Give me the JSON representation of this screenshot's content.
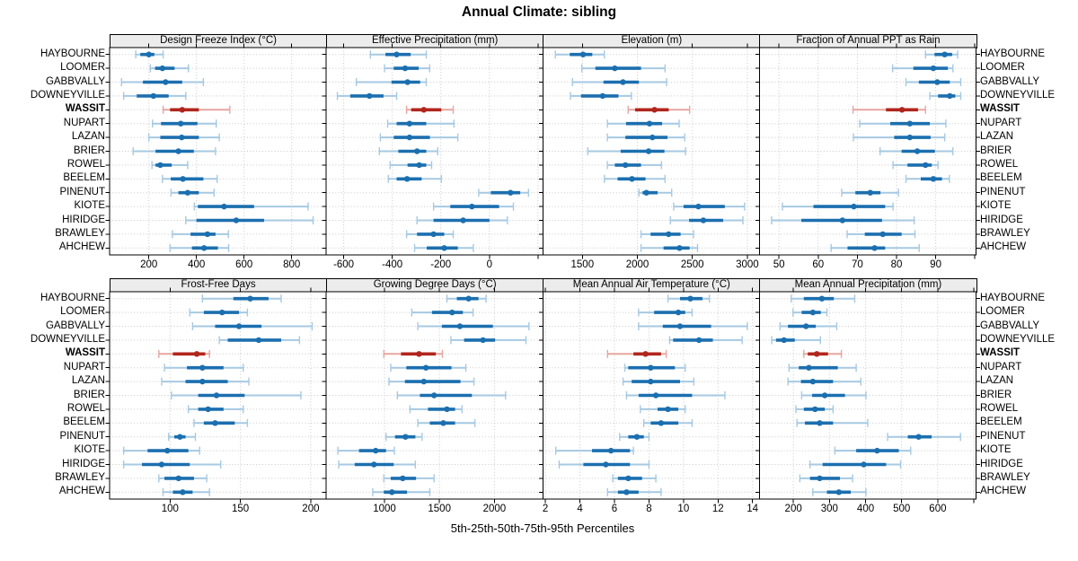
{
  "title": "Annual Climate: sibling",
  "axis_title": "5th-25th-50th-75th-95th Percentiles",
  "highlight_category": "WASSIT",
  "colors": {
    "blue_dark": "#1b6faf",
    "blue_light": "#a6c9e2",
    "red_dark": "#b0261d",
    "red_light": "#e6a69f",
    "grid": "#c8c8c8",
    "strip_bg": "#ececec",
    "border": "#000000"
  },
  "chart_data": {
    "type": "dot-interval",
    "percentiles": [
      5,
      25,
      50,
      75,
      95
    ],
    "legend_position": "none",
    "grid": true,
    "categories": [
      "HAYBOURNE",
      "LOOMER",
      "GABBVALLY",
      "DOWNEYVILLE",
      "WASSIT",
      "NUPART",
      "LAZAN",
      "BRIER",
      "ROWEL",
      "BEELEM",
      "PINENUT",
      "KIOTE",
      "HIRIDGE",
      "BRAWLEY",
      "AHCHEW"
    ],
    "panels": [
      {
        "title": "Design Freeze Index (°C)",
        "row": 0,
        "col": 0,
        "xlim": [
          35,
          945
        ],
        "ticks": [
          200,
          400,
          600,
          800
        ],
        "minor_ticks": [],
        "values": {
          "HAYBOURNE": [
            145,
            164,
            200,
            223,
            260
          ],
          "LOOMER": [
            206,
            226,
            257,
            308,
            366
          ],
          "GABBVALLY": [
            85,
            175,
            270,
            340,
            429
          ],
          "DOWNEYVILLE": [
            94,
            149,
            219,
            283,
            355
          ],
          "WASSIT": [
            260,
            289,
            340,
            410,
            540
          ],
          "NUPART": [
            215,
            251,
            334,
            404,
            483
          ],
          "LAZAN": [
            200,
            248,
            338,
            410,
            496
          ],
          "BRIER": [
            134,
            228,
            324,
            389,
            480
          ],
          "ROWEL": [
            213,
            228,
            248,
            296,
            363
          ],
          "BEELEM": [
            257,
            292,
            343,
            429,
            487
          ],
          "PINENUT": [
            293,
            324,
            363,
            410,
            474
          ],
          "KIOTE": [
            391,
            406,
            516,
            642,
            869
          ],
          "HIRIDGE": [
            355,
            400,
            567,
            684,
            890
          ],
          "BRAWLEY": [
            299,
            375,
            446,
            480,
            534
          ],
          "AHCHEW": [
            289,
            381,
            432,
            490,
            535
          ]
        }
      },
      {
        "title": "Effective Precipitation (mm)",
        "row": 0,
        "col": 1,
        "xlim": [
          -672,
          220
        ],
        "ticks": [
          -600,
          -400,
          -200,
          0
        ],
        "minor_ticks": [
          200
        ],
        "values": {
          "HAYBOURNE": [
            -490,
            -428,
            -382,
            -324,
            -260
          ],
          "LOOMER": [
            -432,
            -394,
            -347,
            -291,
            -246
          ],
          "GABBVALLY": [
            -548,
            -403,
            -337,
            -285,
            -260
          ],
          "DOWNEYVILLE": [
            -626,
            -573,
            -494,
            -436,
            -382
          ],
          "WASSIT": [
            -341,
            -322,
            -270,
            -198,
            -149
          ],
          "NUPART": [
            -419,
            -382,
            -329,
            -260,
            -146
          ],
          "LAZAN": [
            -449,
            -394,
            -329,
            -245,
            -130
          ],
          "BRIER": [
            -453,
            -375,
            -298,
            -260,
            -213
          ],
          "ROWEL": [
            -409,
            -337,
            -289,
            -260,
            -238
          ],
          "BEELEM": [
            -416,
            -382,
            -339,
            -279,
            -198
          ],
          "PINENUT": [
            -44,
            6,
            87,
            127,
            161
          ],
          "KIOTE": [
            -230,
            -161,
            -72,
            40,
            99
          ],
          "HIRIDGE": [
            -298,
            -230,
            -108,
            0,
            74
          ],
          "BRAWLEY": [
            -341,
            -298,
            -230,
            -186,
            -149
          ],
          "AHCHEW": [
            -308,
            -258,
            -186,
            -130,
            -66
          ]
        }
      },
      {
        "title": "Elevation (m)",
        "row": 0,
        "col": 2,
        "xlim": [
          1140,
          3110
        ],
        "ticks": [
          1500,
          2000,
          2500,
          3000
        ],
        "minor_ticks": [],
        "values": {
          "HAYBOURNE": [
            1254,
            1385,
            1506,
            1590,
            1700
          ],
          "LOOMER": [
            1495,
            1618,
            1795,
            2033,
            2252
          ],
          "GABBVALLY": [
            1410,
            1692,
            1869,
            2014,
            2266
          ],
          "DOWNEYVILLE": [
            1391,
            1487,
            1684,
            1828,
            1946
          ],
          "WASSIT": [
            1916,
            1979,
            2156,
            2285,
            2475
          ],
          "NUPART": [
            1727,
            1897,
            2110,
            2225,
            2380
          ],
          "LAZAN": [
            1727,
            1891,
            2137,
            2274,
            2430
          ],
          "BRIER": [
            1549,
            1848,
            2102,
            2246,
            2438
          ],
          "ROWEL": [
            1727,
            1795,
            1891,
            2033,
            2219
          ],
          "BEELEM": [
            1700,
            1820,
            1951,
            2074,
            2252
          ],
          "PINENUT": [
            2014,
            2047,
            2082,
            2184,
            2312
          ],
          "KIOTE": [
            2330,
            2420,
            2555,
            2795,
            2975
          ],
          "HIRIDGE": [
            2300,
            2470,
            2600,
            2780,
            2960
          ],
          "BRAWLEY": [
            2033,
            2120,
            2284,
            2393,
            2511
          ],
          "AHCHEW": [
            2033,
            2238,
            2383,
            2475,
            2547
          ]
        }
      },
      {
        "title": "Fraction of Annual PPT as Rain",
        "row": 0,
        "col": 3,
        "xlim": [
          45,
          100.3
        ],
        "ticks": [
          50,
          60,
          70,
          80,
          90
        ],
        "minor_ticks": [
          100
        ],
        "values": {
          "HAYBOURNE": [
            87.4,
            89.7,
            92.3,
            94.2,
            95.6
          ],
          "LOOMER": [
            79.0,
            84.3,
            89.4,
            93.1,
            94.4
          ],
          "GABBVALLY": [
            82.4,
            85.7,
            90.4,
            93.6,
            96.4
          ],
          "DOWNEYVILLE": [
            88.5,
            90.6,
            93.6,
            95.0,
            96.4
          ],
          "WASSIT": [
            68.9,
            77.3,
            81.4,
            85.5,
            87.4
          ],
          "NUPART": [
            70.6,
            78.4,
            83.4,
            88.5,
            92.6
          ],
          "LAZAN": [
            69.0,
            79.4,
            83.4,
            88.7,
            92.3
          ],
          "BRIER": [
            75.8,
            81.3,
            85.3,
            89.8,
            94.4
          ],
          "ROWEL": [
            79.1,
            82.8,
            87.4,
            89.0,
            90.6
          ],
          "BEELEM": [
            82.4,
            86.2,
            89.4,
            91.6,
            93.5
          ],
          "PINENUT": [
            66.0,
            69.5,
            73.3,
            75.9,
            80.5
          ],
          "KIOTE": [
            50.9,
            58.8,
            69.1,
            77.1,
            79.1
          ],
          "HIRIDGE": [
            48.1,
            55.7,
            66.2,
            76.3,
            84.5
          ],
          "BRAWLEY": [
            67.4,
            71.9,
            76.5,
            81.3,
            84.7
          ],
          "AHCHEW": [
            63.3,
            67.5,
            74.4,
            77.1,
            85.8
          ]
        }
      },
      {
        "title": "Frost-Free Days",
        "row": 1,
        "col": 0,
        "xlim": [
          57,
          211
        ],
        "ticks": [
          100,
          150,
          200
        ],
        "minor_ticks": [],
        "values": {
          "HAYBOURNE": [
            123,
            145,
            157,
            170,
            179
          ],
          "LOOMER": [
            114,
            124,
            137,
            149,
            155
          ],
          "GABBVALLY": [
            116,
            132,
            149,
            165,
            201
          ],
          "DOWNEYVILLE": [
            135,
            141,
            163,
            179,
            192
          ],
          "WASSIT": [
            92,
            102,
            119,
            125,
            128
          ],
          "NUPART": [
            96,
            112,
            123,
            138,
            152
          ],
          "LAZAN": [
            94,
            111,
            123,
            141,
            156
          ],
          "BRIER": [
            101,
            120,
            133,
            153,
            193
          ],
          "ROWEL": [
            113,
            120,
            127,
            138,
            152
          ],
          "BEELEM": [
            117,
            124,
            132,
            146,
            155
          ],
          "PINENUT": [
            99,
            103,
            107,
            111,
            118
          ],
          "KIOTE": [
            67,
            84,
            98,
            113,
            121
          ],
          "HIRIDGE": [
            67,
            80,
            94,
            114,
            136
          ],
          "BRAWLEY": [
            92,
            96,
            106,
            117,
            126
          ],
          "AHCHEW": [
            95,
            102,
            109,
            116,
            128
          ]
        }
      },
      {
        "title": "Growing Degree Days (°C)",
        "row": 1,
        "col": 1,
        "xlim": [
          470,
          2440
        ],
        "ticks": [
          1000,
          1500,
          2000
        ],
        "minor_ticks": [],
        "values": {
          "HAYBOURNE": [
            1568,
            1658,
            1765,
            1855,
            1924
          ],
          "LOOMER": [
            1248,
            1432,
            1615,
            1713,
            1806
          ],
          "GABBVALLY": [
            1303,
            1522,
            1686,
            1986,
            2314
          ],
          "DOWNEYVILLE": [
            1604,
            1724,
            1896,
            2006,
            2287
          ],
          "WASSIT": [
            994,
            1150,
            1314,
            1467,
            1527
          ],
          "NUPART": [
            1057,
            1199,
            1377,
            1609,
            1740
          ],
          "LAZAN": [
            1041,
            1186,
            1358,
            1691,
            1814
          ],
          "BRIER": [
            1117,
            1322,
            1451,
            1795,
            2101
          ],
          "ROWEL": [
            1232,
            1396,
            1568,
            1642,
            1705
          ],
          "BEELEM": [
            1303,
            1412,
            1535,
            1642,
            1822
          ],
          "PINENUT": [
            1014,
            1096,
            1191,
            1281,
            1342
          ],
          "KIOTE": [
            576,
            768,
            920,
            1014,
            1090
          ],
          "HIRIDGE": [
            584,
            729,
            904,
            1084,
            1281
          ],
          "BRAWLEY": [
            994,
            1057,
            1166,
            1287,
            1451
          ],
          "AHCHEW": [
            893,
            994,
            1068,
            1205,
            1412
          ]
        }
      },
      {
        "title": "Mean Annual Air Temperature (°C)",
        "row": 1,
        "col": 2,
        "xlim": [
          1.85,
          14.4
        ],
        "ticks": [
          2,
          4,
          6,
          8,
          10,
          12,
          14
        ],
        "minor_ticks": [],
        "values": {
          "HAYBOURNE": [
            9.1,
            9.8,
            10.4,
            11.1,
            11.5
          ],
          "LOOMER": [
            7.4,
            8.3,
            9.7,
            10.1,
            10.5
          ],
          "GABBVALLY": [
            7.4,
            8.8,
            9.8,
            11.6,
            13.7
          ],
          "DOWNEYVILLE": [
            9.2,
            9.4,
            10.9,
            11.7,
            13.4
          ],
          "WASSIT": [
            5.6,
            7.1,
            7.8,
            8.7,
            9.0
          ],
          "NUPART": [
            6.6,
            6.8,
            8.1,
            9.5,
            10.1
          ],
          "LAZAN": [
            6.5,
            7.0,
            8.1,
            9.8,
            10.6
          ],
          "BRIER": [
            6.7,
            7.4,
            8.4,
            10.5,
            12.4
          ],
          "ROWEL": [
            7.5,
            8.5,
            9.1,
            9.7,
            10.1
          ],
          "BEELEM": [
            7.7,
            8.1,
            8.7,
            9.7,
            10.5
          ],
          "PINENUT": [
            6.3,
            6.8,
            7.3,
            7.7,
            8.0
          ],
          "KIOTE": [
            2.6,
            4.7,
            5.8,
            6.9,
            7.1
          ],
          "HIRIDGE": [
            2.8,
            4.2,
            5.5,
            6.9,
            8.0
          ],
          "BRAWLEY": [
            5.9,
            6.2,
            6.8,
            7.6,
            8.4
          ],
          "AHCHEW": [
            5.6,
            6.2,
            6.7,
            7.4,
            8.7
          ]
        }
      },
      {
        "title": "Mean Annual Precipitation (mm)",
        "row": 1,
        "col": 3,
        "xlim": [
          106,
          706
        ],
        "ticks": [
          200,
          300,
          400,
          500,
          600
        ],
        "minor_ticks": [
          700
        ],
        "values": {
          "HAYBOURNE": [
            194,
            229,
            279,
            312,
            370
          ],
          "LOOMER": [
            199,
            223,
            254,
            276,
            293
          ],
          "GABBVALLY": [
            163,
            185,
            235,
            262,
            320
          ],
          "DOWNEYVILLE": [
            140,
            152,
            174,
            204,
            275
          ],
          "WASSIT": [
            229,
            240,
            265,
            296,
            333
          ],
          "NUPART": [
            188,
            215,
            243,
            323,
            374
          ],
          "LAZAN": [
            185,
            221,
            254,
            310,
            387
          ],
          "BRIER": [
            223,
            252,
            287,
            343,
            401
          ],
          "ROWEL": [
            207,
            229,
            260,
            287,
            310
          ],
          "BEELEM": [
            210,
            232,
            273,
            310,
            406
          ],
          "PINENUT": [
            461,
            517,
            547,
            583,
            663
          ],
          "KIOTE": [
            315,
            374,
            432,
            492,
            525
          ],
          "HIRIDGE": [
            246,
            281,
            395,
            457,
            497
          ],
          "BRAWLEY": [
            218,
            246,
            273,
            329,
            364
          ],
          "AHCHEW": [
            254,
            293,
            326,
            359,
            401
          ]
        }
      }
    ]
  }
}
